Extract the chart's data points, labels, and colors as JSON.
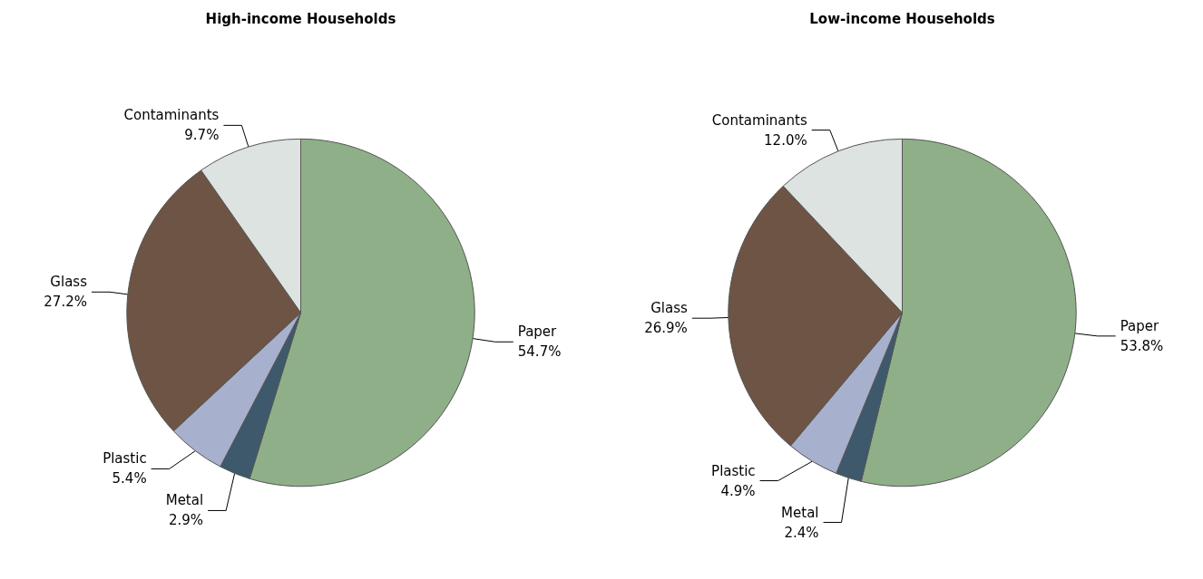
{
  "chart_data": [
    {
      "type": "pie",
      "title": "High-income Households",
      "categories": [
        "Paper",
        "Metal",
        "Plastic",
        "Glass",
        "Contaminants"
      ],
      "values": [
        54.7,
        2.9,
        5.4,
        27.2,
        9.7
      ],
      "value_labels": [
        "54.7%",
        "2.9%",
        "5.4%",
        "27.2%",
        "9.7%"
      ],
      "colors": [
        "#8faf88",
        "#3e596b",
        "#a7b0cc",
        "#6d5445",
        "#dde3e0"
      ],
      "legend": false
    },
    {
      "type": "pie",
      "title": "Low-income Households",
      "categories": [
        "Paper",
        "Metal",
        "Plastic",
        "Glass",
        "Contaminants"
      ],
      "values": [
        53.8,
        2.4,
        4.9,
        26.9,
        12.0
      ],
      "value_labels": [
        "53.8%",
        "2.4%",
        "4.9%",
        "26.9%",
        "12.0%"
      ],
      "colors": [
        "#8faf88",
        "#3e596b",
        "#a7b0cc",
        "#6d5445",
        "#dde3e0"
      ],
      "legend": false
    }
  ]
}
